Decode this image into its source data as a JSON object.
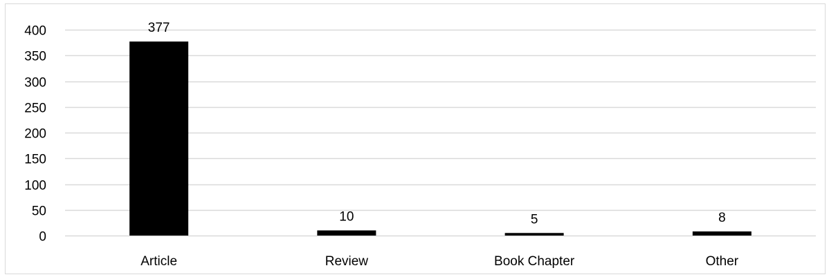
{
  "chart_data": {
    "type": "bar",
    "categories": [
      "Article",
      "Review",
      "Book Chapter",
      "Other"
    ],
    "values": [
      377,
      10,
      5,
      8
    ],
    "data_labels": [
      "377",
      "10",
      "5",
      "8"
    ],
    "title": "",
    "xlabel": "",
    "ylabel": "",
    "ylim": [
      0,
      400
    ],
    "yticks": [
      "0",
      "50",
      "100",
      "150",
      "200",
      "250",
      "300",
      "350",
      "400"
    ],
    "bar_color": "#000000",
    "grid": true,
    "grid_color": "#d9d9d9",
    "legend": "none"
  }
}
